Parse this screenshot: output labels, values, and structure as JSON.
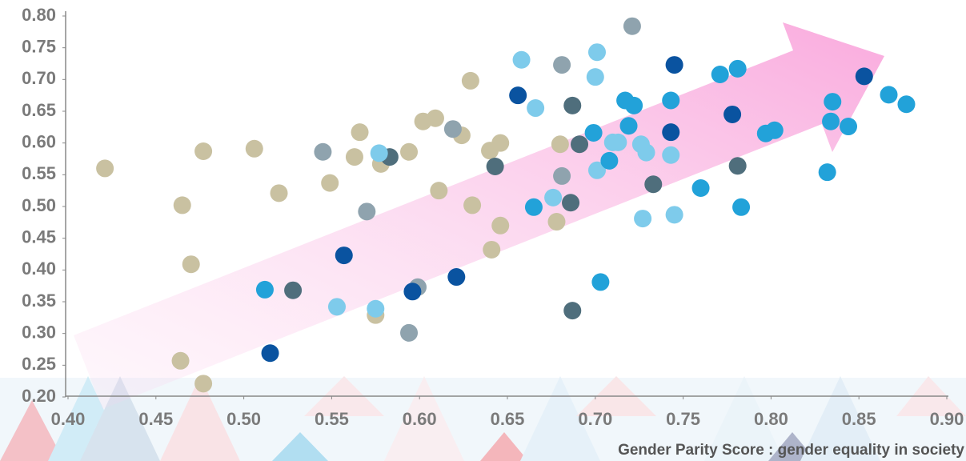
{
  "chart_data": {
    "type": "scatter",
    "xlabel": "Gender Parity Score : gender equality in society",
    "xlim": [
      0.4,
      0.9
    ],
    "ylim": [
      0.2,
      0.8
    ],
    "xticks": [
      {
        "value": 0.4,
        "label": "0.40"
      },
      {
        "value": 0.45,
        "label": "0.45"
      },
      {
        "value": 0.5,
        "label": "0.50"
      },
      {
        "value": 0.55,
        "label": "0.55"
      },
      {
        "value": 0.6,
        "label": "0.60"
      },
      {
        "value": 0.65,
        "label": "0.65"
      },
      {
        "value": 0.7,
        "label": "0.70"
      },
      {
        "value": 0.75,
        "label": "0.75"
      },
      {
        "value": 0.8,
        "label": "0.80"
      },
      {
        "value": 0.85,
        "label": "0.85"
      },
      {
        "value": 0.9,
        "label": "0.90"
      }
    ],
    "yticks": [
      {
        "value": 0.2,
        "label": "0.20"
      },
      {
        "value": 0.25,
        "label": "0.25"
      },
      {
        "value": 0.3,
        "label": "0.30"
      },
      {
        "value": 0.35,
        "label": "0.35"
      },
      {
        "value": 0.4,
        "label": "0.40"
      },
      {
        "value": 0.45,
        "label": "0.45"
      },
      {
        "value": 0.5,
        "label": "0.50"
      },
      {
        "value": 0.55,
        "label": "0.55"
      },
      {
        "value": 0.6,
        "label": "0.60"
      },
      {
        "value": 0.65,
        "label": "0.65"
      },
      {
        "value": 0.7,
        "label": "0.70"
      },
      {
        "value": 0.75,
        "label": "0.75"
      },
      {
        "value": 0.8,
        "label": "0.80"
      }
    ],
    "series": [
      {
        "color": "#c9c1a1",
        "x": [
          0.421,
          0.465,
          0.47,
          0.477,
          0.464,
          0.477,
          0.506,
          0.52,
          0.549,
          0.563,
          0.566,
          0.578,
          0.575,
          0.594,
          0.602,
          0.609,
          0.611,
          0.624,
          0.63,
          0.629,
          0.64,
          0.646,
          0.646,
          0.641,
          0.68,
          0.678
        ],
        "values": [
          0.56,
          0.502,
          0.409,
          0.587,
          0.257,
          0.221,
          0.591,
          0.521,
          0.537,
          0.578,
          0.617,
          0.567,
          0.329,
          0.586,
          0.634,
          0.639,
          0.525,
          0.612,
          0.502,
          0.698,
          0.588,
          0.6,
          0.47,
          0.432,
          0.598,
          0.476
        ]
      },
      {
        "color": "#8fa3ae",
        "x": [
          0.545,
          0.57,
          0.594,
          0.619,
          0.681,
          0.681,
          0.721,
          0.599
        ],
        "values": [
          0.586,
          0.492,
          0.301,
          0.622,
          0.723,
          0.548,
          0.784,
          0.373
        ]
      },
      {
        "color": "#4f6e7c",
        "x": [
          0.528,
          0.583,
          0.643,
          0.687,
          0.686,
          0.691,
          0.687,
          0.733,
          0.781
        ],
        "values": [
          0.368,
          0.578,
          0.563,
          0.659,
          0.506,
          0.598,
          0.336,
          0.535,
          0.564
        ]
      },
      {
        "color": "#7ecbeb",
        "x": [
          0.658,
          0.666,
          0.701,
          0.7,
          0.676,
          0.701,
          0.71,
          0.713,
          0.726,
          0.729,
          0.727,
          0.743,
          0.745,
          0.577,
          0.553,
          0.575
        ],
        "values": [
          0.731,
          0.655,
          0.743,
          0.704,
          0.514,
          0.557,
          0.601,
          0.601,
          0.598,
          0.585,
          0.481,
          0.581,
          0.487,
          0.584,
          0.342,
          0.339
        ]
      },
      {
        "color": "#22a2d9",
        "x": [
          0.512,
          0.665,
          0.699,
          0.708,
          0.703,
          0.717,
          0.722,
          0.719,
          0.743,
          0.76,
          0.771,
          0.781,
          0.783,
          0.797,
          0.802,
          0.832,
          0.835,
          0.834,
          0.844,
          0.867,
          0.877
        ],
        "values": [
          0.369,
          0.499,
          0.616,
          0.572,
          0.381,
          0.667,
          0.659,
          0.627,
          0.667,
          0.529,
          0.708,
          0.717,
          0.499,
          0.615,
          0.62,
          0.554,
          0.665,
          0.634,
          0.626,
          0.676,
          0.661
        ]
      },
      {
        "color": "#0a53a0",
        "x": [
          0.515,
          0.557,
          0.596,
          0.621,
          0.656,
          0.745,
          0.743,
          0.778,
          0.853
        ],
        "values": [
          0.269,
          0.423,
          0.366,
          0.389,
          0.675,
          0.723,
          0.617,
          0.645,
          0.705
        ]
      }
    ]
  }
}
